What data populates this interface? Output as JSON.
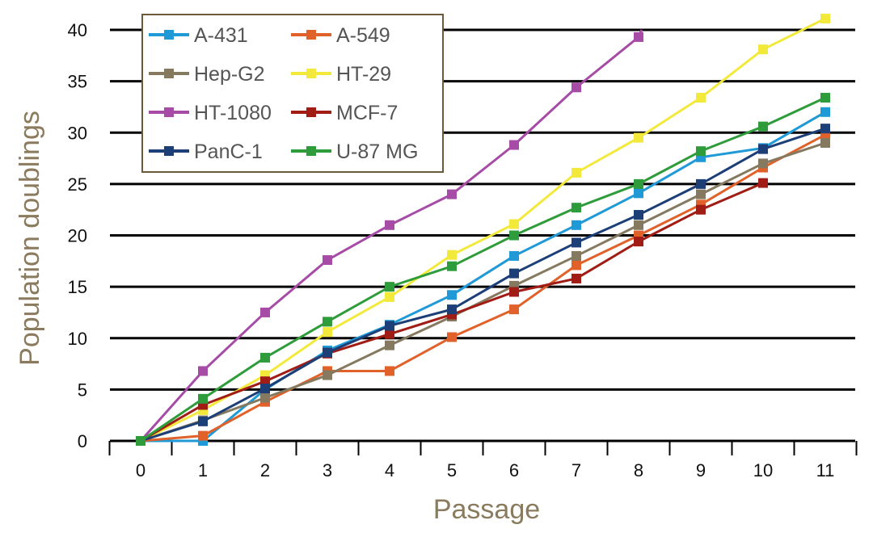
{
  "chart_data": {
    "type": "line",
    "xlabel": "Passage",
    "ylabel": "Population doublings",
    "xlim": [
      0,
      11
    ],
    "ylim": [
      0,
      40
    ],
    "x_ticks": [
      "0",
      "1",
      "2",
      "3",
      "4",
      "5",
      "6",
      "7",
      "8",
      "9",
      "10",
      "11"
    ],
    "y_ticks": [
      "0",
      "5",
      "10",
      "15",
      "20",
      "25",
      "30",
      "35",
      "40"
    ],
    "grid": "horizontal",
    "legend_position": "top-left",
    "series": [
      {
        "name": "A-431",
        "color": "#1f9ad6",
        "x": [
          0,
          1,
          2,
          3,
          4,
          5,
          6,
          7,
          8,
          9,
          10,
          11
        ],
        "values": [
          0,
          0,
          5,
          8.8,
          11.3,
          14.2,
          18,
          21,
          24.1,
          27.6,
          28.5,
          32
        ]
      },
      {
        "name": "A-549",
        "color": "#e0622a",
        "x": [
          0,
          1,
          2,
          3,
          4,
          5,
          6,
          7,
          8,
          9,
          10,
          11
        ],
        "values": [
          0,
          0.5,
          3.8,
          6.8,
          6.8,
          10.1,
          12.8,
          17.1,
          20,
          23,
          26.6,
          29.8
        ]
      },
      {
        "name": "Hep-G2",
        "color": "#857a5f",
        "x": [
          0,
          1,
          2,
          3,
          4,
          5,
          6,
          7,
          8,
          9,
          10,
          11
        ],
        "values": [
          0,
          2,
          4.2,
          6.4,
          9.3,
          12.1,
          15.1,
          18,
          21,
          24,
          27,
          29
        ]
      },
      {
        "name": "HT-29",
        "color": "#f2e93a",
        "x": [
          0,
          1,
          2,
          3,
          4,
          5,
          6,
          7,
          8,
          9,
          10,
          11
        ],
        "values": [
          0,
          3,
          6.4,
          10.6,
          14,
          18.1,
          21.1,
          26.1,
          29.5,
          33.4,
          38.1,
          41.1
        ]
      },
      {
        "name": "HT-1080",
        "color": "#a64ca6",
        "x": [
          0,
          1,
          2,
          3,
          4,
          5,
          6,
          7,
          8,
          8.05
        ],
        "values": [
          0,
          6.8,
          12.5,
          17.6,
          21,
          24,
          28.8,
          34.4,
          39.3,
          40
        ]
      },
      {
        "name": "MCF-7",
        "color": "#a01c14",
        "x": [
          0,
          1,
          2,
          3,
          4,
          5,
          6,
          7,
          8,
          9,
          10
        ],
        "values": [
          0,
          3.5,
          5.8,
          8.5,
          10.4,
          12.3,
          14.5,
          15.8,
          19.4,
          22.5,
          25.1
        ]
      },
      {
        "name": "PanC-1",
        "color": "#1c3f78",
        "x": [
          0,
          1,
          2,
          3,
          4,
          5,
          6,
          7,
          8,
          9,
          10,
          11
        ],
        "values": [
          0,
          1.9,
          5.1,
          8.6,
          11.2,
          12.8,
          16.3,
          19.3,
          22,
          25,
          28.4,
          30.4
        ]
      },
      {
        "name": "U-87 MG",
        "color": "#2e9c3a",
        "x": [
          0,
          1,
          2,
          3,
          4,
          5,
          6,
          7,
          8,
          9,
          10,
          11
        ],
        "values": [
          0,
          4.1,
          8.1,
          11.6,
          15,
          17,
          20,
          22.7,
          25,
          28.2,
          30.6,
          33.4
        ]
      }
    ]
  }
}
